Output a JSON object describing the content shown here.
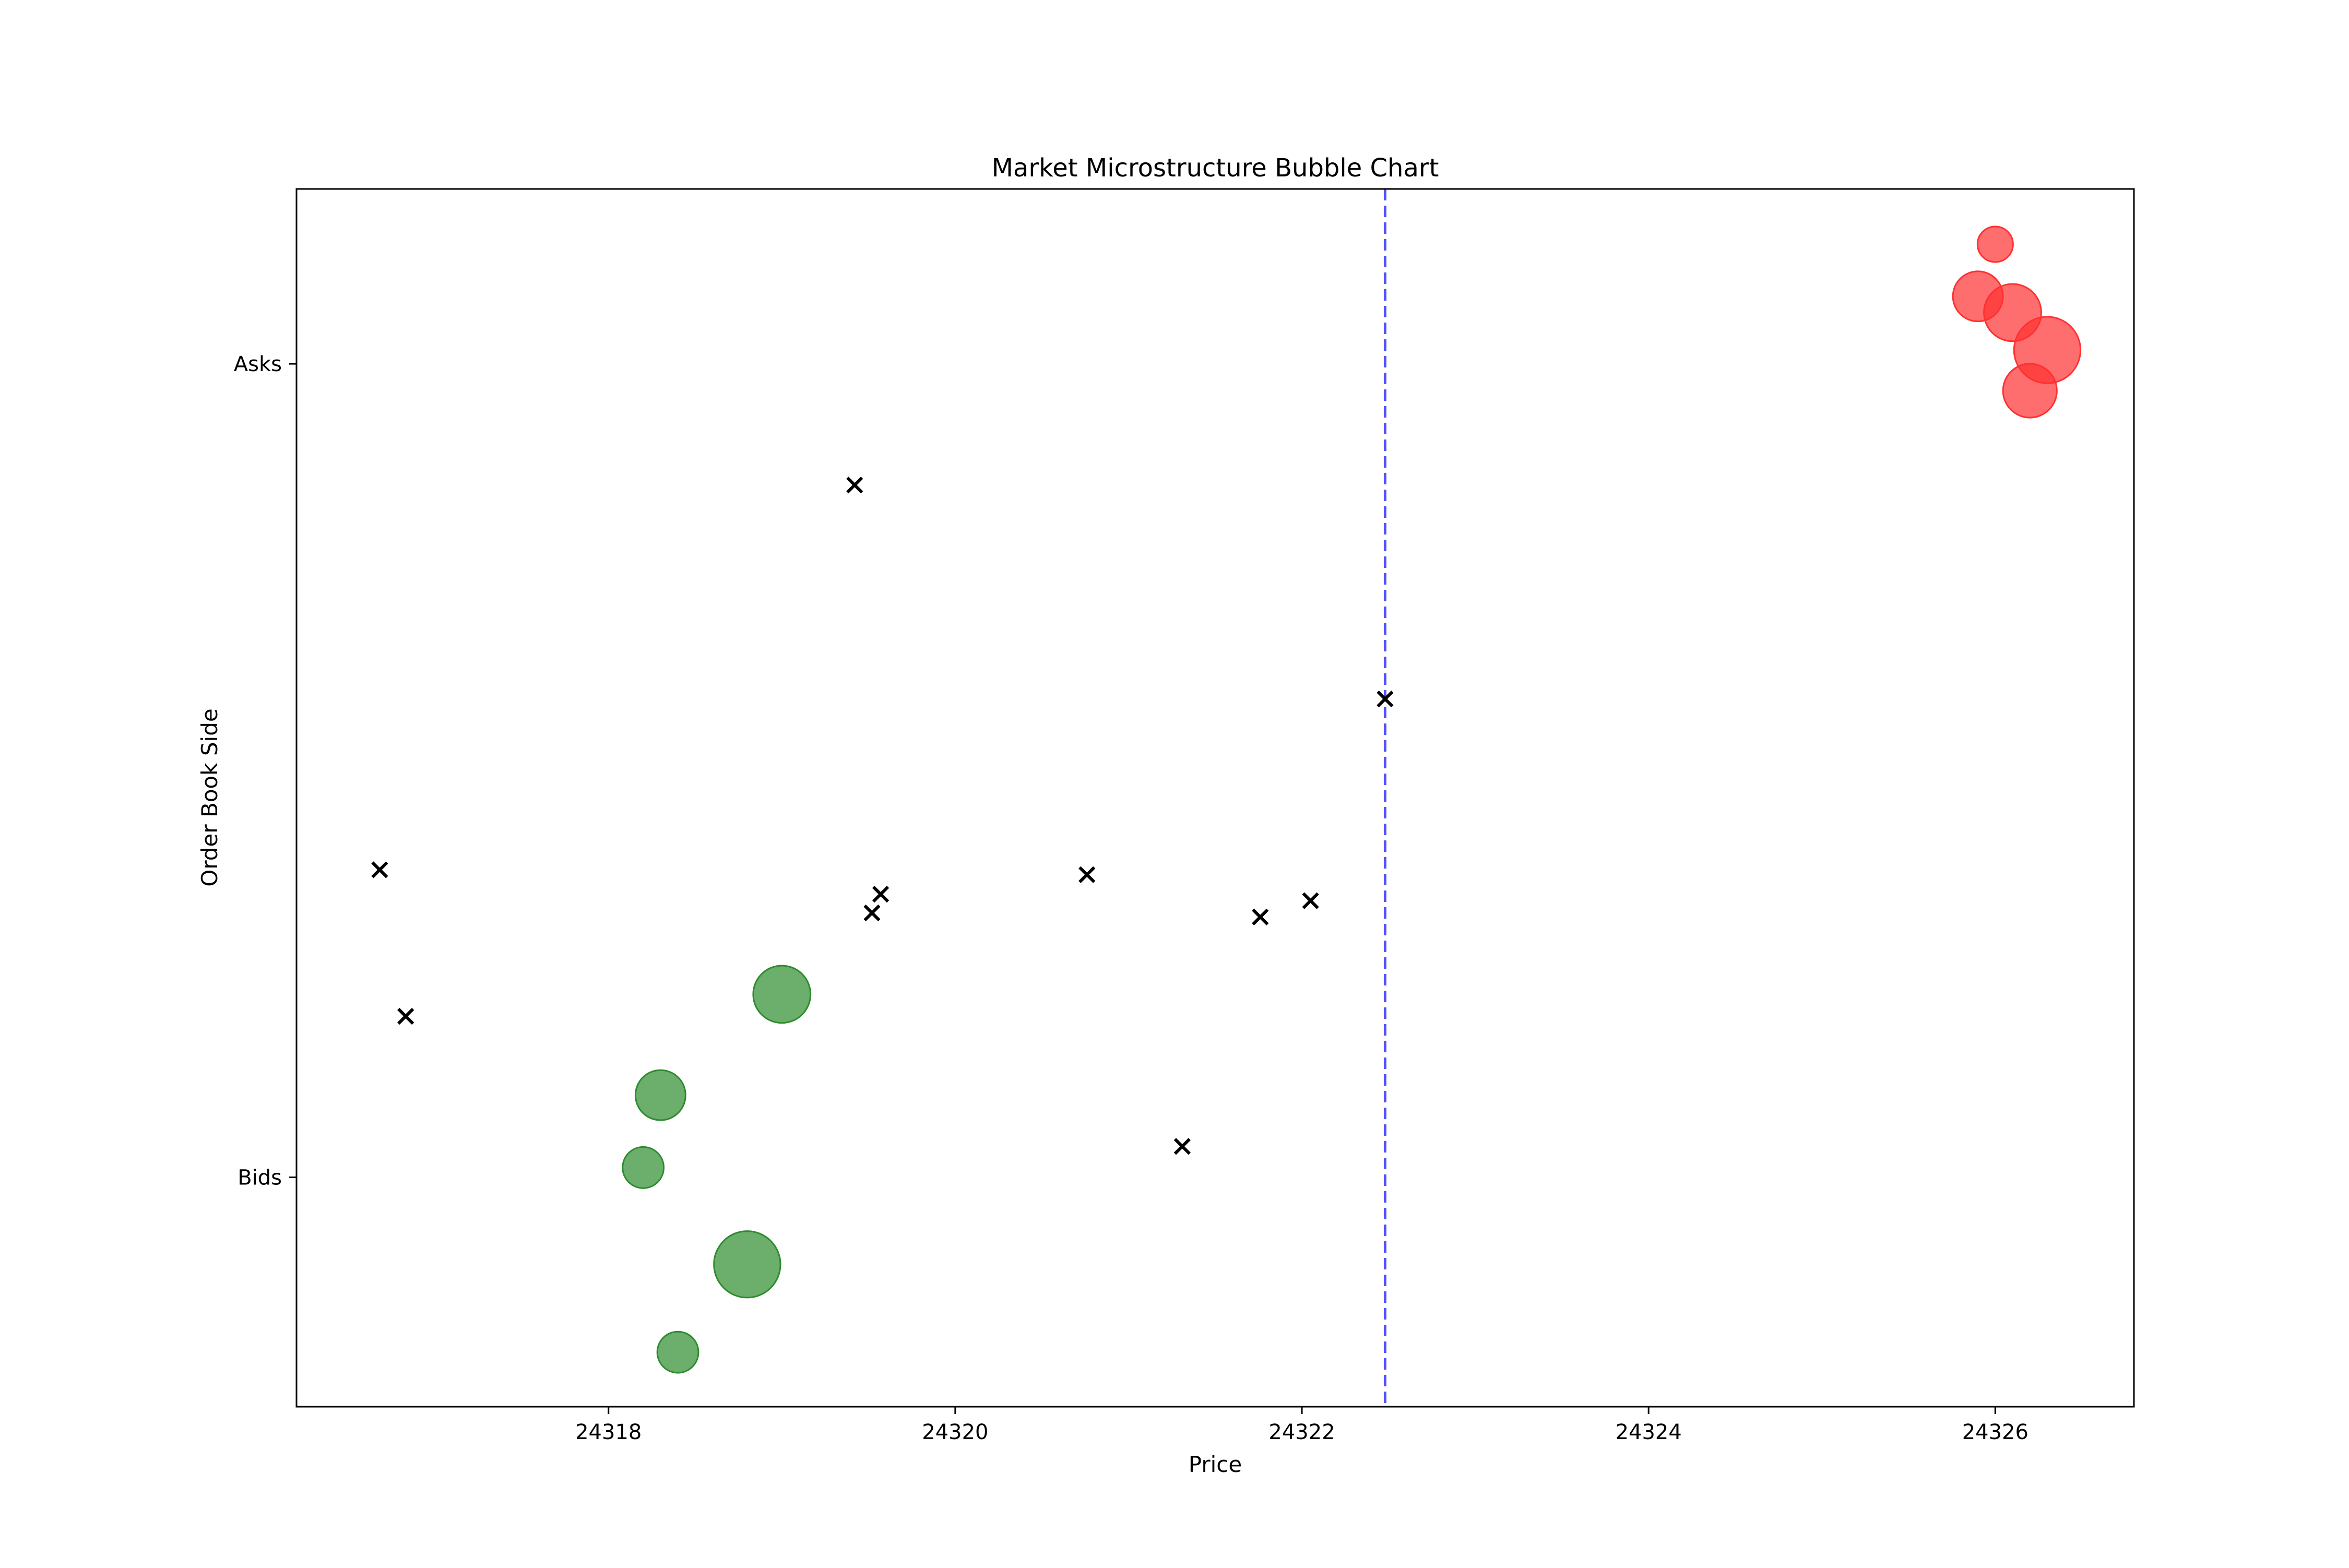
{
  "chart_data": {
    "type": "scatter",
    "title": "Market Microstructure Bubble Chart",
    "xlabel": "Price",
    "ylabel": "Order Book Side",
    "xlim": [
      24316.2,
      24326.8
    ],
    "ylim": [
      -0.282,
      1.215
    ],
    "x_ticks": [
      24318,
      24320,
      24322,
      24324,
      24326
    ],
    "y_ticks": [
      {
        "value": 0,
        "label": "Bids"
      },
      {
        "value": 1,
        "label": "Asks"
      }
    ],
    "grid": false,
    "legend": "none",
    "mid_price": 24322.48,
    "colors": {
      "bids": "#2e8b2e",
      "asks": "#ff3030",
      "trades": "#000000",
      "mid_line": "#3333ff"
    },
    "series": [
      {
        "marker": "bubble",
        "color_key": "bids",
        "points": [
          {
            "x": 24319.0,
            "y": 0.225,
            "size": 7
          },
          {
            "x": 24318.3,
            "y": 0.101,
            "size": 5
          },
          {
            "x": 24318.2,
            "y": 0.012,
            "size": 3
          },
          {
            "x": 24318.8,
            "y": -0.107,
            "size": 10
          },
          {
            "x": 24318.4,
            "y": -0.215,
            "size": 3
          }
        ]
      },
      {
        "marker": "bubble",
        "color_key": "asks",
        "points": [
          {
            "x": 24326.0,
            "y": 1.147,
            "size": 2
          },
          {
            "x": 24325.9,
            "y": 1.083,
            "size": 5
          },
          {
            "x": 24326.1,
            "y": 1.063,
            "size": 7
          },
          {
            "x": 24326.3,
            "y": 1.017,
            "size": 10
          },
          {
            "x": 24326.2,
            "y": 0.967,
            "size": 6
          }
        ]
      },
      {
        "marker": "x",
        "color_key": "trades",
        "points": [
          {
            "x": 24319.42,
            "y": 0.851
          },
          {
            "x": 24322.48,
            "y": 0.588
          },
          {
            "x": 24316.68,
            "y": 0.378
          },
          {
            "x": 24320.76,
            "y": 0.372
          },
          {
            "x": 24319.57,
            "y": 0.348
          },
          {
            "x": 24322.05,
            "y": 0.34
          },
          {
            "x": 24319.52,
            "y": 0.325
          },
          {
            "x": 24321.76,
            "y": 0.32
          },
          {
            "x": 24316.83,
            "y": 0.198
          },
          {
            "x": 24321.31,
            "y": 0.038
          }
        ]
      }
    ]
  }
}
